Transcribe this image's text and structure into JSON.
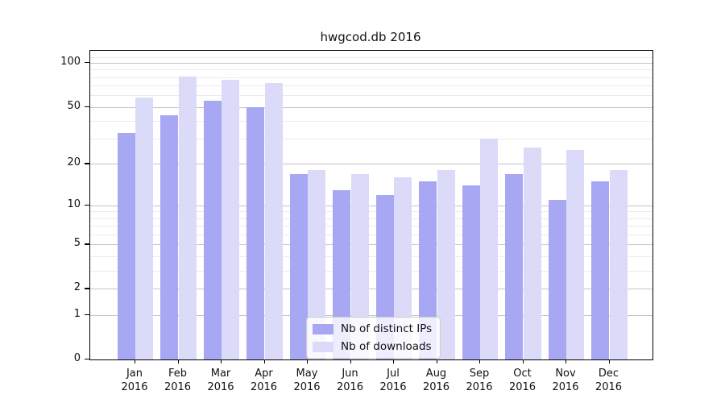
{
  "chart_data": {
    "type": "bar",
    "title": "hwgcod.db 2016",
    "categories": [
      "Jan",
      "Feb",
      "Mar",
      "Apr",
      "May",
      "Jun",
      "Jul",
      "Aug",
      "Sep",
      "Oct",
      "Nov",
      "Dec"
    ],
    "category_year": "2016",
    "series": [
      {
        "name": "Nb of distinct IPs",
        "color": "#a7a7f4",
        "values": [
          33,
          44,
          55,
          50,
          17,
          13,
          12,
          15,
          14,
          17,
          11,
          15
        ]
      },
      {
        "name": "Nb of downloads",
        "color": "#dbdbf9",
        "values": [
          58,
          81,
          77,
          73,
          18,
          17,
          16,
          18,
          30,
          26,
          25,
          18
        ]
      }
    ],
    "y_axis": {
      "scale": "log1p",
      "major_ticks": [
        0,
        1,
        2,
        5,
        10,
        20,
        50,
        100
      ],
      "minor_gridlines": [
        3,
        4,
        6,
        7,
        8,
        9,
        30,
        40,
        60,
        70,
        80,
        90,
        110
      ],
      "max": 121
    },
    "grid": "horizontal",
    "legend_position": "bottom-center"
  }
}
